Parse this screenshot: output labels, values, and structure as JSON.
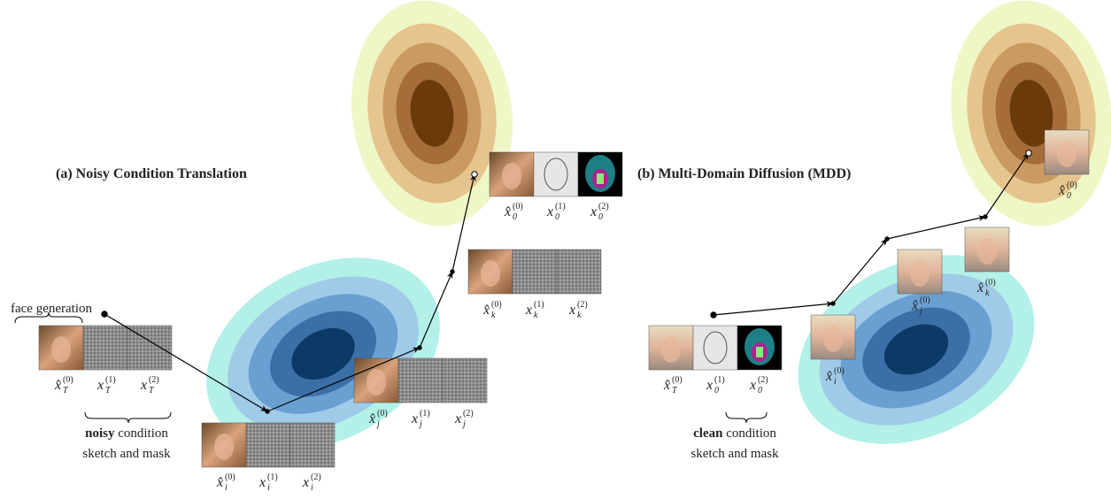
{
  "panels": [
    {
      "title": "(a) Noisy Condition Translation",
      "annotation": "face generation",
      "caption": {
        "bold": "noisy",
        "rest": "condition",
        "line2": "sketch and mask"
      },
      "labels": [
        {
          "base": "x̂",
          "sub": "T",
          "sup": "(0)"
        },
        {
          "base": "x",
          "sub": "T",
          "sup": "(1)"
        },
        {
          "base": "x",
          "sub": "T",
          "sup": "(2)"
        },
        {
          "base": "x̂",
          "sub": "i",
          "sup": "(0)"
        },
        {
          "base": "x",
          "sub": "i",
          "sup": "(1)"
        },
        {
          "base": "x",
          "sub": "i",
          "sup": "(2)"
        },
        {
          "base": "x̂",
          "sub": "j",
          "sup": "(0)"
        },
        {
          "base": "x",
          "sub": "j",
          "sup": "(1)"
        },
        {
          "base": "x",
          "sub": "j",
          "sup": "(2)"
        },
        {
          "base": "x̂",
          "sub": "k",
          "sup": "(0)"
        },
        {
          "base": "x",
          "sub": "k",
          "sup": "(1)"
        },
        {
          "base": "x",
          "sub": "k",
          "sup": "(2)"
        },
        {
          "base": "x̂",
          "sub": "0",
          "sup": "(0)"
        },
        {
          "base": "x",
          "sub": "0",
          "sup": "(1)"
        },
        {
          "base": "x",
          "sub": "0",
          "sup": "(2)"
        }
      ]
    },
    {
      "title": "(b) Multi-Domain Diffusion (MDD)",
      "caption": {
        "bold": "clean",
        "rest": "condition",
        "line2": "sketch and mask"
      },
      "labels": [
        {
          "base": "x̂",
          "sub": "T",
          "sup": "(0)"
        },
        {
          "base": "x",
          "sub": "0",
          "sup": "(1)"
        },
        {
          "base": "x",
          "sub": "0",
          "sup": "(2)"
        },
        {
          "base": "x̂",
          "sub": "i",
          "sup": "(0)"
        },
        {
          "base": "x̂",
          "sub": "j",
          "sup": "(0)"
        },
        {
          "base": "x̂",
          "sub": "k",
          "sup": "(0)"
        },
        {
          "base": "x̂",
          "sub": "0",
          "sup": "(0)"
        }
      ]
    }
  ]
}
